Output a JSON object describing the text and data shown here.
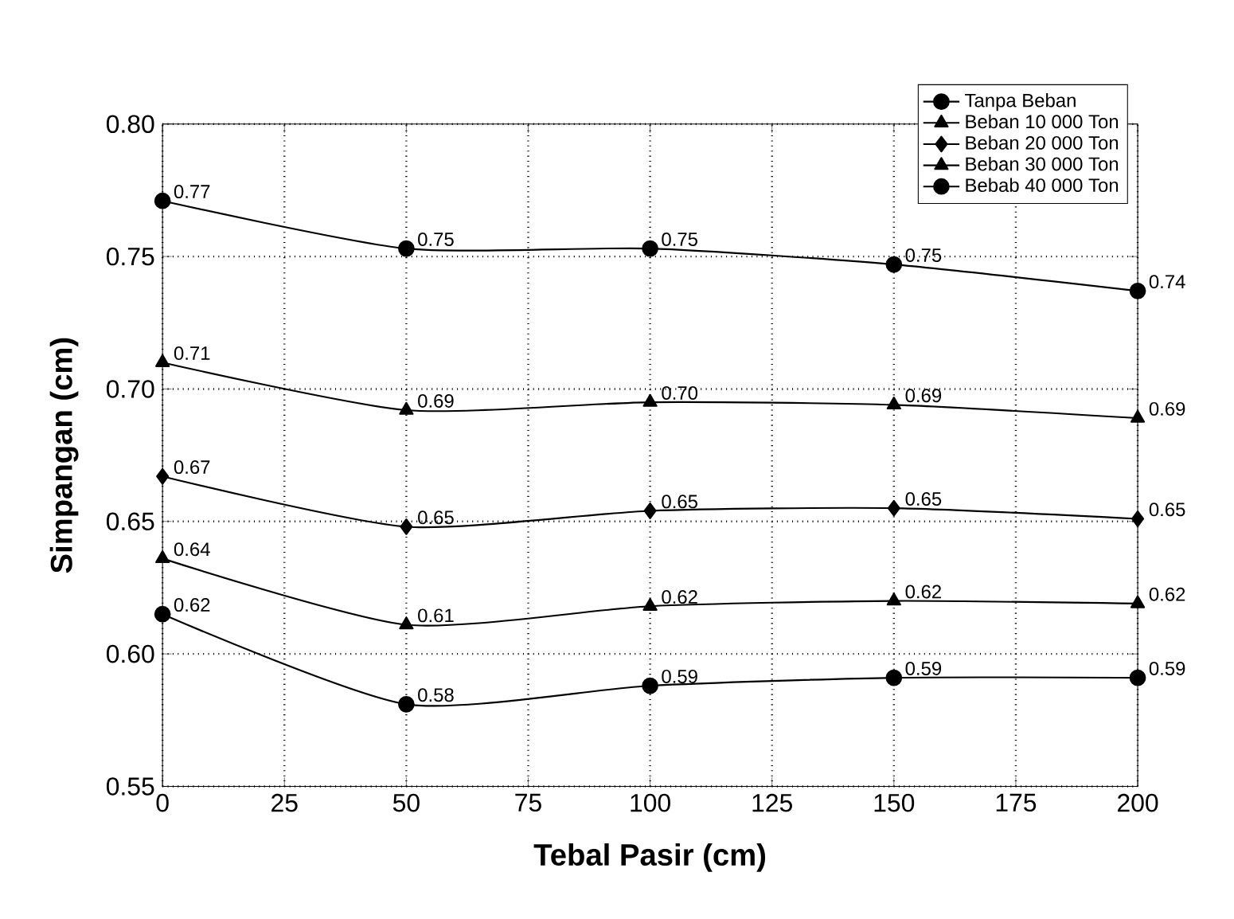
{
  "chart_data": {
    "type": "line",
    "xlabel": "Tebal Pasir (cm)",
    "ylabel": "Simpangan (cm)",
    "x": [
      0,
      50,
      100,
      150,
      200
    ],
    "xlim": [
      0,
      200
    ],
    "xticks": [
      0,
      25,
      50,
      75,
      100,
      125,
      150,
      175,
      200
    ],
    "ylim": [
      0.55,
      0.8
    ],
    "yticks": [
      {
        "value": 0.55,
        "label": "0.55"
      },
      {
        "value": 0.6,
        "label": "0.60"
      },
      {
        "value": 0.65,
        "label": "0.65"
      },
      {
        "value": 0.7,
        "label": "0.70"
      },
      {
        "value": 0.75,
        "label": "0.75"
      },
      {
        "value": 0.8,
        "label": "0.80"
      }
    ],
    "grid": true,
    "legend": "top right",
    "line_style": "solid",
    "series": [
      {
        "name": "Tanpa Beban",
        "color": "#000000",
        "marker": "circle",
        "values": [
          0.771,
          0.753,
          0.753,
          0.747,
          0.737
        ],
        "value_labels": [
          "0.77",
          "0.75",
          "0.75",
          "0.75",
          "0.74"
        ]
      },
      {
        "name": "Beban 10 000 Ton",
        "color": "#000000",
        "marker": "triangle",
        "values": [
          0.71,
          0.692,
          0.695,
          0.694,
          0.689
        ],
        "value_labels": [
          "0.71",
          "0.69",
          "0.70",
          "0.69",
          "0.69"
        ]
      },
      {
        "name": "Beban 20 000 Ton",
        "color": "#000000",
        "marker": "diamond",
        "values": [
          0.667,
          0.648,
          0.654,
          0.655,
          0.651
        ],
        "value_labels": [
          "0.67",
          "0.65",
          "0.65",
          "0.65",
          "0.65"
        ]
      },
      {
        "name": "Beban 30 000 Ton",
        "color": "#000000",
        "marker": "triangle",
        "values": [
          0.636,
          0.611,
          0.618,
          0.62,
          0.619
        ],
        "value_labels": [
          "0.64",
          "0.61",
          "0.62",
          "0.62",
          "0.62"
        ]
      },
      {
        "name": "Bebab 40 000 Ton",
        "color": "#000000",
        "marker": "circle",
        "values": [
          0.615,
          0.581,
          0.588,
          0.591,
          0.591
        ],
        "value_labels": [
          "0.62",
          "0.58",
          "0.59",
          "0.59",
          "0.59"
        ]
      }
    ]
  }
}
